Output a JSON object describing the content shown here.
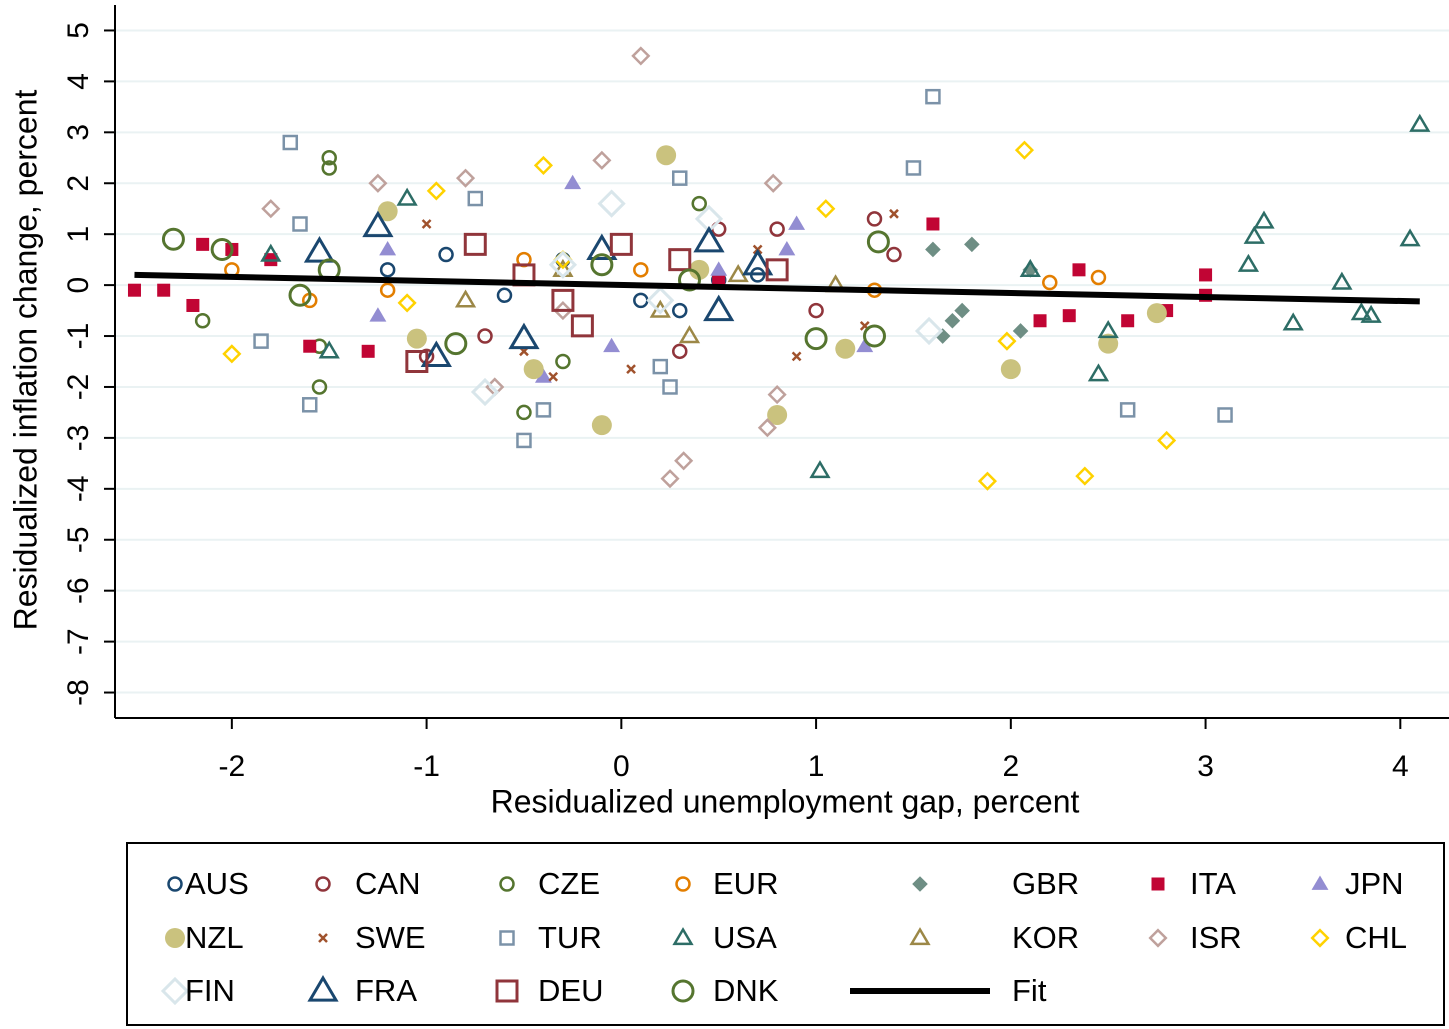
{
  "chart_data": {
    "type": "scatter",
    "x_label": "Residualized unemployment gap, percent",
    "y_label": "Residualized inflation change, percent",
    "xlim": [
      -2.6,
      4.25
    ],
    "ylim": [
      -8.5,
      5.5
    ],
    "xticks": [
      -2,
      -1,
      0,
      1,
      2,
      3,
      4
    ],
    "yticks": [
      -8,
      -7,
      -6,
      -5,
      -4,
      -3,
      -2,
      -1,
      0,
      1,
      2,
      3,
      4,
      5
    ],
    "grid": true,
    "legend": "bottom",
    "series": [
      {
        "name": "AUS",
        "color": "#1a476f",
        "marker": "circle-hollow",
        "size": "small",
        "x": [
          -1.2,
          -0.6,
          -0.3,
          0.1,
          0.5,
          -0.9,
          0.3,
          0.7
        ],
        "values": [
          0.3,
          -0.2,
          0.5,
          -0.3,
          0.1,
          0.6,
          -0.5,
          0.2
        ]
      },
      {
        "name": "CAN",
        "color": "#90353b",
        "marker": "circle-hollow",
        "size": "small",
        "x": [
          1.3,
          1.4,
          -1.0,
          0.3,
          0.8,
          -0.7,
          0.5,
          1.0
        ],
        "values": [
          1.3,
          0.6,
          -1.4,
          -1.3,
          1.1,
          -1.0,
          1.1,
          -0.5
        ]
      },
      {
        "name": "CZE",
        "color": "#55752f",
        "marker": "circle-hollow",
        "size": "small",
        "x": [
          -1.5,
          -1.5,
          -1.55,
          -1.55,
          -0.5,
          -2.15,
          0.4,
          -0.3
        ],
        "values": [
          2.5,
          2.3,
          -2.0,
          -1.2,
          -2.5,
          -0.7,
          1.6,
          -1.5
        ]
      },
      {
        "name": "EUR",
        "color": "#e37e00",
        "marker": "circle-hollow",
        "size": "small",
        "x": [
          -2.0,
          2.2,
          2.45,
          -1.2,
          0.1,
          -0.5,
          1.3,
          -1.6
        ],
        "values": [
          0.3,
          0.05,
          0.15,
          -0.1,
          0.3,
          0.5,
          -0.1,
          -0.3
        ]
      },
      {
        "name": "GBR",
        "color": "#6e8e84",
        "marker": "diamond-filled",
        "size": "small",
        "x": [
          1.6,
          1.8,
          1.75,
          2.05,
          2.1,
          1.65,
          1.7
        ],
        "values": [
          0.7,
          0.8,
          -0.5,
          -0.9,
          0.3,
          -1.0,
          -0.7
        ]
      },
      {
        "name": "ITA",
        "color": "#c10534",
        "marker": "square-filled",
        "size": "small",
        "x": [
          -2.5,
          -2.35,
          -2.15,
          -2.0,
          -1.8,
          -1.6,
          -1.3,
          1.6,
          2.15,
          2.3,
          2.35,
          2.6,
          3.0,
          3.0,
          2.8,
          -2.2,
          0.5
        ],
        "values": [
          -0.1,
          -0.1,
          0.8,
          0.7,
          0.5,
          -1.2,
          -1.3,
          1.2,
          -0.7,
          -0.6,
          0.3,
          -0.7,
          0.2,
          -0.2,
          -0.5,
          -0.4,
          0.1
        ]
      },
      {
        "name": "JPN",
        "color": "#938dd2",
        "marker": "triangle-filled",
        "size": "small",
        "x": [
          -0.25,
          0.9,
          0.85,
          -0.4,
          -1.25,
          1.25,
          0.5,
          -1.2,
          -0.05
        ],
        "values": [
          2.0,
          1.2,
          0.7,
          -1.8,
          -0.6,
          -1.2,
          0.3,
          0.7,
          -1.2
        ]
      },
      {
        "name": "NZL",
        "color": "#cac27e",
        "marker": "circle-filled",
        "size": "large",
        "x": [
          0.23,
          -0.1,
          -0.45,
          0.8,
          1.15,
          2.0,
          2.5,
          2.75,
          -1.2,
          -1.05,
          0.4
        ],
        "values": [
          2.55,
          -2.75,
          -1.65,
          -2.55,
          -1.25,
          -1.65,
          -1.15,
          -0.55,
          1.45,
          -1.05,
          0.3
        ]
      },
      {
        "name": "SWE",
        "color": "#a0522d",
        "marker": "x",
        "size": "small",
        "x": [
          1.4,
          0.9,
          -0.35,
          -0.5,
          0.05,
          0.7,
          -1.0,
          1.25
        ],
        "values": [
          1.4,
          -1.4,
          -1.8,
          -1.3,
          -1.65,
          0.7,
          1.2,
          -0.8
        ]
      },
      {
        "name": "TUR",
        "color": "#7b92a8",
        "marker": "square-hollow",
        "size": "small",
        "x": [
          -1.7,
          1.6,
          1.5,
          -1.6,
          -1.85,
          0.3,
          0.25,
          -0.5,
          -0.4,
          2.6,
          3.1,
          0.2,
          -0.75,
          -1.65
        ],
        "values": [
          2.8,
          3.7,
          2.3,
          -2.35,
          -1.1,
          2.1,
          -2.0,
          -3.05,
          -2.45,
          -2.45,
          -2.55,
          -1.6,
          1.7,
          1.2
        ]
      },
      {
        "name": "USA",
        "color": "#2d6d66",
        "marker": "triangle-hollow",
        "size": "small",
        "x": [
          4.1,
          4.05,
          3.3,
          3.25,
          3.22,
          3.7,
          3.8,
          3.85,
          3.45,
          2.5,
          2.45,
          1.02,
          -1.1,
          -1.5,
          -1.8,
          2.1
        ],
        "values": [
          3.15,
          0.9,
          1.25,
          0.95,
          0.4,
          0.05,
          -0.55,
          -0.6,
          -0.75,
          -0.9,
          -1.75,
          -3.65,
          1.7,
          -1.3,
          0.6,
          0.3
        ]
      },
      {
        "name": "KOR",
        "color": "#9c8847",
        "marker": "triangle-hollow",
        "size": "small",
        "x": [
          -0.3,
          0.2,
          0.6,
          -0.8,
          1.1,
          0.35
        ],
        "values": [
          0.3,
          -0.5,
          0.2,
          -0.3,
          0.0,
          -1.0
        ]
      },
      {
        "name": "ISR",
        "color": "#bfa19c",
        "marker": "diamond-hollow",
        "size": "small",
        "x": [
          0.1,
          0.25,
          0.32,
          -0.1,
          -0.8,
          0.78,
          0.75,
          0.8,
          -1.25,
          -1.8,
          -0.3,
          -0.65
        ],
        "values": [
          4.5,
          -3.8,
          -3.45,
          2.45,
          2.1,
          2.0,
          -2.8,
          -2.15,
          2.0,
          1.5,
          -0.5,
          -2.0
        ]
      },
      {
        "name": "CHL",
        "color": "#ffd200",
        "marker": "diamond-hollow",
        "size": "small",
        "x": [
          2.07,
          1.88,
          2.38,
          2.8,
          -2.0,
          -0.95,
          -0.4,
          1.05,
          1.98,
          -1.1,
          -0.3
        ],
        "values": [
          2.65,
          -3.85,
          -3.75,
          -3.05,
          -1.35,
          1.85,
          2.35,
          1.5,
          -1.1,
          -0.35,
          0.5
        ]
      },
      {
        "name": "FIN",
        "color": "#d9e6eb",
        "marker": "diamond-hollow",
        "size": "large",
        "x": [
          -0.7,
          0.45,
          1.58,
          -0.05,
          -0.3,
          0.2
        ],
        "values": [
          -2.1,
          1.3,
          -0.9,
          1.6,
          0.4,
          -0.3
        ]
      },
      {
        "name": "FRA",
        "color": "#1a476f",
        "marker": "triangle-hollow",
        "size": "large",
        "x": [
          -1.25,
          -0.95,
          -0.5,
          0.45,
          -0.1,
          0.5,
          -1.55,
          0.7
        ],
        "values": [
          1.15,
          -1.4,
          -1.05,
          0.85,
          0.7,
          -0.5,
          0.65,
          0.4
        ]
      },
      {
        "name": "DEU",
        "color": "#90353b",
        "marker": "square-hollow",
        "size": "large",
        "x": [
          -1.05,
          -0.75,
          -0.3,
          0.0,
          0.3,
          0.8,
          -0.5,
          -0.2
        ],
        "values": [
          -1.5,
          0.8,
          -0.3,
          0.8,
          0.5,
          0.3,
          0.2,
          -0.8
        ]
      },
      {
        "name": "DNK",
        "color": "#55752f",
        "marker": "circle-hollow",
        "size": "large",
        "x": [
          -2.3,
          -1.5,
          -1.65,
          0.35,
          -0.85,
          1.32,
          1.3,
          1.0,
          -2.05,
          -0.1
        ],
        "values": [
          0.9,
          0.3,
          -0.2,
          0.1,
          -1.15,
          0.85,
          -1.0,
          -1.05,
          0.7,
          0.4
        ]
      },
      {
        "name": "Fit",
        "color": "#000000",
        "marker": "line",
        "x": [
          -2.5,
          4.1
        ],
        "values": [
          0.2,
          -0.32
        ]
      }
    ]
  }
}
